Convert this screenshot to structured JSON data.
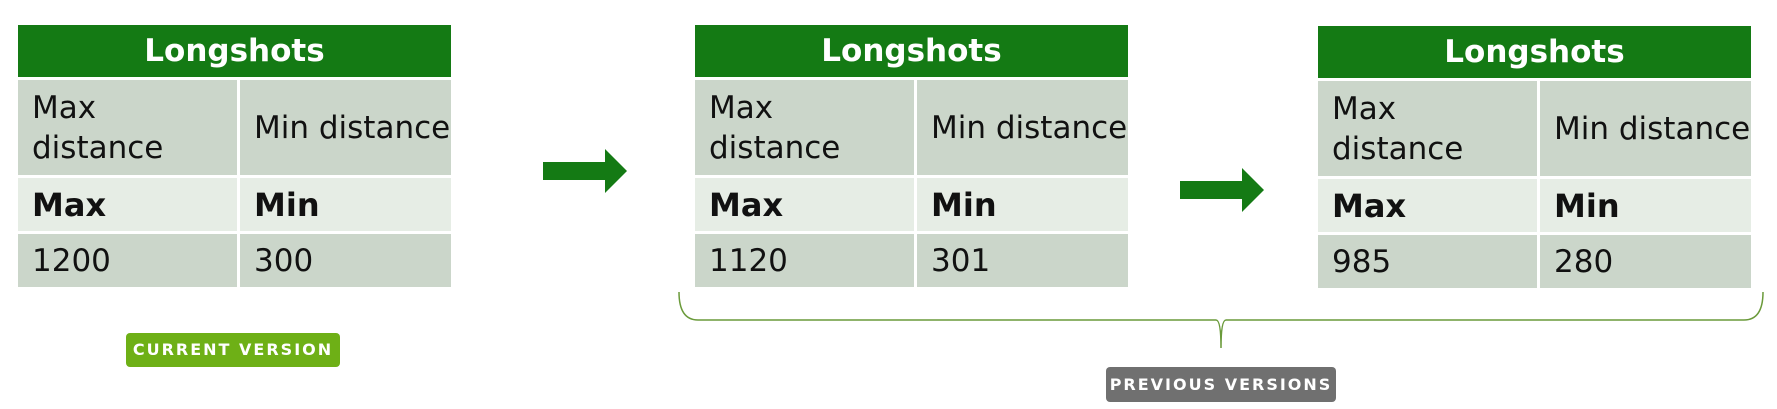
{
  "tables": [
    {
      "title": "Longshots",
      "col1_label": "Max distance",
      "col2_label": "Min distance",
      "col1_title": "Max",
      "col2_title": "Min",
      "col1_value": "1200",
      "col2_value": "300"
    },
    {
      "title": "Longshots",
      "col1_label": "Max distance",
      "col2_label": "Min distance",
      "col1_title": "Max",
      "col2_title": "Min",
      "col1_value": "1120",
      "col2_value": "301"
    },
    {
      "title": "Longshots",
      "col1_label": "Max distance",
      "col2_label": "Min distance",
      "col1_title": "Max",
      "col2_title": "Min",
      "col1_value": "985",
      "col2_value": "280"
    }
  ],
  "badges": {
    "current": "CURRENT VERSION",
    "previous": "PREVIOUS VERSIONS"
  },
  "colors": {
    "header_green": "#147a14",
    "arrow_green": "#147a14",
    "current_badge": "#6eb016",
    "previous_badge": "#707070",
    "brace": "#6a9a3a",
    "cell": "#cbd6ca",
    "title_row": "#e6ede5"
  }
}
